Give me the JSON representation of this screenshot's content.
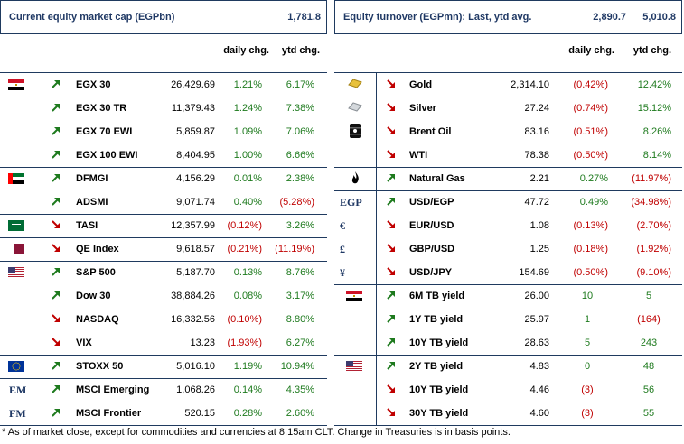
{
  "left": {
    "title": "Current equity market cap (EGPbn)",
    "title_value": "1,781.8",
    "col_daily": "daily chg.",
    "col_ytd": "ytd chg.",
    "rows": [
      {
        "flag": "egypt-flag",
        "dir": "up",
        "name": "EGX 30",
        "value": "26,429.69",
        "daily": "1.21%",
        "daily_sign": "pos",
        "ytd": "6.17%",
        "ytd_sign": "pos"
      },
      {
        "flag": "",
        "dir": "up",
        "name": "EGX 30 TR",
        "value": "11,379.43",
        "daily": "1.24%",
        "daily_sign": "pos",
        "ytd": "7.38%",
        "ytd_sign": "pos"
      },
      {
        "flag": "",
        "dir": "up",
        "name": "EGX 70 EWI",
        "value": "5,859.87",
        "daily": "1.09%",
        "daily_sign": "pos",
        "ytd": "7.06%",
        "ytd_sign": "pos"
      },
      {
        "flag": "",
        "dir": "up",
        "name": "EGX 100 EWI",
        "value": "8,404.95",
        "daily": "1.00%",
        "daily_sign": "pos",
        "ytd": "6.66%",
        "ytd_sign": "pos"
      },
      {
        "flag": "uae-flag",
        "dir": "up",
        "name": "DFMGI",
        "value": "4,156.29",
        "daily": "0.01%",
        "daily_sign": "pos",
        "ytd": "2.38%",
        "ytd_sign": "pos"
      },
      {
        "flag": "",
        "dir": "up",
        "name": "ADSMI",
        "value": "9,071.74",
        "daily": "0.40%",
        "daily_sign": "pos",
        "ytd": "(5.28%)",
        "ytd_sign": "neg"
      },
      {
        "flag": "saudi-flag",
        "dir": "down",
        "name": "TASI",
        "value": "12,357.99",
        "daily": "(0.12%)",
        "daily_sign": "neg",
        "ytd": "3.26%",
        "ytd_sign": "pos"
      },
      {
        "flag": "qatar-flag",
        "dir": "down",
        "name": "QE Index",
        "value": "9,618.57",
        "daily": "(0.21%)",
        "daily_sign": "neg",
        "ytd": "(11.19%)",
        "ytd_sign": "neg"
      },
      {
        "flag": "us-flag",
        "dir": "up",
        "name": "S&P 500",
        "value": "5,187.70",
        "daily": "0.13%",
        "daily_sign": "pos",
        "ytd": "8.76%",
        "ytd_sign": "pos"
      },
      {
        "flag": "",
        "dir": "up",
        "name": "Dow 30",
        "value": "38,884.26",
        "daily": "0.08%",
        "daily_sign": "pos",
        "ytd": "3.17%",
        "ytd_sign": "pos"
      },
      {
        "flag": "",
        "dir": "down",
        "name": "NASDAQ",
        "value": "16,332.56",
        "daily": "(0.10%)",
        "daily_sign": "neg",
        "ytd": "8.80%",
        "ytd_sign": "pos"
      },
      {
        "flag": "",
        "dir": "down",
        "name": "VIX",
        "value": "13.23",
        "daily": "(1.93%)",
        "daily_sign": "neg",
        "ytd": "6.27%",
        "ytd_sign": "pos"
      },
      {
        "flag": "eu-flag",
        "dir": "up",
        "name": "STOXX 50",
        "value": "5,016.10",
        "daily": "1.19%",
        "daily_sign": "pos",
        "ytd": "10.94%",
        "ytd_sign": "pos"
      },
      {
        "flag": "",
        "symbol": "EM",
        "dir": "up",
        "name": "MSCI Emerging",
        "value": "1,068.26",
        "daily": "0.14%",
        "daily_sign": "pos",
        "ytd": "4.35%",
        "ytd_sign": "pos"
      },
      {
        "flag": "",
        "symbol": "FM",
        "dir": "up",
        "name": "MSCI Frontier",
        "value": "520.15",
        "daily": "0.28%",
        "daily_sign": "pos",
        "ytd": "2.60%",
        "ytd_sign": "pos"
      }
    ]
  },
  "right": {
    "title": "Equity turnover (EGPmn): Last, ytd avg.",
    "title_value1": "2,890.7",
    "title_value2": "5,010.8",
    "col_daily": "daily chg.",
    "col_ytd": "ytd chg.",
    "rows": [
      {
        "icon": "gold-bar-icon",
        "dir": "down",
        "name": "Gold",
        "value": "2,314.10",
        "daily": "(0.42%)",
        "daily_sign": "neg",
        "ytd": "12.42%",
        "ytd_sign": "pos"
      },
      {
        "icon": "silver-bar-icon",
        "dir": "down",
        "name": "Silver",
        "value": "27.24",
        "daily": "(0.74%)",
        "daily_sign": "neg",
        "ytd": "15.12%",
        "ytd_sign": "pos"
      },
      {
        "icon": "oil-barrel-icon",
        "dir": "down",
        "name": "Brent Oil",
        "value": "83.16",
        "daily": "(0.51%)",
        "daily_sign": "neg",
        "ytd": "8.26%",
        "ytd_sign": "pos"
      },
      {
        "icon": "",
        "dir": "down",
        "name": "WTI",
        "value": "78.38",
        "daily": "(0.50%)",
        "daily_sign": "neg",
        "ytd": "8.14%",
        "ytd_sign": "pos"
      },
      {
        "icon": "flame-icon",
        "dir": "up",
        "name": "Natural Gas",
        "value": "2.21",
        "daily": "0.27%",
        "daily_sign": "pos",
        "ytd": "(11.97%)",
        "ytd_sign": "neg"
      },
      {
        "icon": "",
        "symbol": "EGP",
        "dir": "up",
        "name": "USD/EGP",
        "value": "47.72",
        "daily": "0.49%",
        "daily_sign": "pos",
        "ytd": "(34.98%)",
        "ytd_sign": "neg"
      },
      {
        "icon": "",
        "symbol": "€",
        "dir": "down",
        "name": "EUR/USD",
        "value": "1.08",
        "daily": "(0.13%)",
        "daily_sign": "neg",
        "ytd": "(2.70%)",
        "ytd_sign": "neg"
      },
      {
        "icon": "",
        "symbol": "£",
        "dir": "down",
        "name": "GBP/USD",
        "value": "1.25",
        "daily": "(0.18%)",
        "daily_sign": "neg",
        "ytd": "(1.92%)",
        "ytd_sign": "neg"
      },
      {
        "icon": "",
        "symbol": "¥",
        "dir": "down",
        "name": "USD/JPY",
        "value": "154.69",
        "daily": "(0.50%)",
        "daily_sign": "neg",
        "ytd": "(9.10%)",
        "ytd_sign": "neg"
      },
      {
        "icon": "egypt-flag",
        "dir": "up",
        "name": "6M TB yield",
        "value": "26.00",
        "daily": "10",
        "daily_sign": "pos",
        "ytd": "5",
        "ytd_sign": "pos"
      },
      {
        "icon": "",
        "dir": "up",
        "name": "1Y TB yield",
        "value": "25.97",
        "daily": "1",
        "daily_sign": "pos",
        "ytd": "(164)",
        "ytd_sign": "neg"
      },
      {
        "icon": "",
        "dir": "up",
        "name": "10Y TB yield",
        "value": "28.63",
        "daily": "5",
        "daily_sign": "pos",
        "ytd": "243",
        "ytd_sign": "pos"
      },
      {
        "icon": "us-flag",
        "dir": "up",
        "name": "2Y TB yield",
        "value": "4.83",
        "daily": "0",
        "daily_sign": "pos",
        "ytd": "48",
        "ytd_sign": "pos"
      },
      {
        "icon": "",
        "dir": "down",
        "name": "10Y TB yield",
        "value": "4.46",
        "daily": "(3)",
        "daily_sign": "neg",
        "ytd": "56",
        "ytd_sign": "pos"
      },
      {
        "icon": "",
        "dir": "down",
        "name": "30Y TB yield",
        "value": "4.60",
        "daily": "(3)",
        "daily_sign": "neg",
        "ytd": "55",
        "ytd_sign": "pos"
      }
    ]
  },
  "colors": {
    "positive": "#1e7a1e",
    "negative": "#c00000",
    "up_arrow": "#1e7a1e",
    "down_arrow": "#c00000",
    "border": "#1f3a5f"
  },
  "footnote": "* As of market close, except for commodities and currencies at 8.15am CLT. Change in Treasuries is in basis points."
}
